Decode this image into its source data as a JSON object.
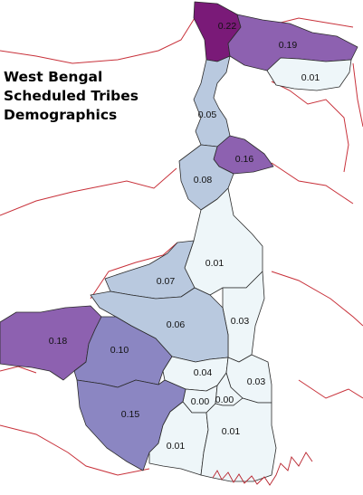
{
  "title": {
    "line1": "West Bengal",
    "line2": "Scheduled Tribes",
    "line3": "Demographics"
  },
  "colors": {
    "border": "#b8242e",
    "dark_purple": "#7a1a78",
    "purple": "#8d61b0",
    "mid_purple": "#8b86c2",
    "light_blue": "#b9c9df",
    "very_light": "#eef6f9"
  },
  "districts": [
    {
      "name": "darjeeling",
      "value": "0.22"
    },
    {
      "name": "jalpaiguri",
      "value": "0.19"
    },
    {
      "name": "cooch-behar",
      "value": "0.01"
    },
    {
      "name": "uttar-dinajpur",
      "value": "0.05"
    },
    {
      "name": "dakshin-dinajpur",
      "value": "0.16"
    },
    {
      "name": "malda",
      "value": "0.08"
    },
    {
      "name": "murshidabad",
      "value": "0.01"
    },
    {
      "name": "birbhum",
      "value": "0.07"
    },
    {
      "name": "nadia",
      "value": "0.03"
    },
    {
      "name": "bardhaman",
      "value": "0.06"
    },
    {
      "name": "purulia",
      "value": "0.18"
    },
    {
      "name": "bankura",
      "value": "0.10"
    },
    {
      "name": "hooghly",
      "value": "0.04"
    },
    {
      "name": "north-24-parganas",
      "value": "0.03"
    },
    {
      "name": "howrah",
      "value": "0.00"
    },
    {
      "name": "kolkata",
      "value": "0.00"
    },
    {
      "name": "paschim-medinipur",
      "value": "0.15"
    },
    {
      "name": "south-24-parganas",
      "value": "0.01"
    },
    {
      "name": "purba-medinipur",
      "value": "0.01"
    }
  ]
}
